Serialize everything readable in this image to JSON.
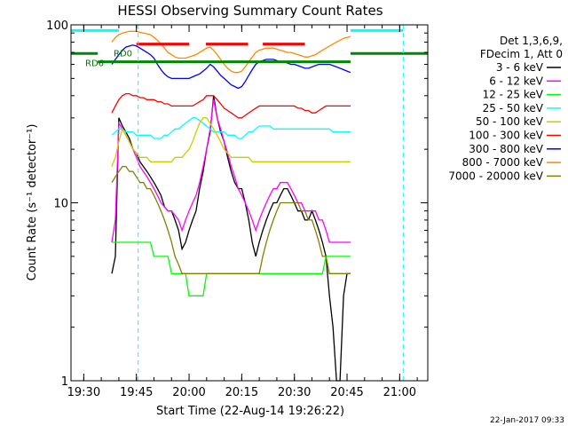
{
  "chart_data": {
    "type": "line",
    "title": "HESSI Observing Summary Count Rates",
    "xlabel": "Start Time (22-Aug-14 19:26:22)",
    "ylabel": "Count Rate (s⁻¹ detector⁻¹)",
    "yscale": "log",
    "ylim": [
      1,
      100
    ],
    "xlim": [
      "19:26:22",
      "21:08:00"
    ],
    "x_ticks": [
      "19:30",
      "19:45",
      "20:00",
      "20:15",
      "20:30",
      "20:45",
      "21:00"
    ],
    "y_ticks": [
      "1",
      "10",
      "100"
    ],
    "legend_position": "right",
    "legend_header": [
      "Det 1,3,6,9,",
      "FDecim 1, Att 0"
    ],
    "x": [
      "19:38",
      "19:39",
      "19:40",
      "19:41",
      "19:42",
      "19:43",
      "19:44",
      "19:45",
      "19:46",
      "19:47",
      "19:48",
      "19:49",
      "19:50",
      "19:51",
      "19:52",
      "19:53",
      "19:54",
      "19:55",
      "19:56",
      "19:57",
      "19:58",
      "19:59",
      "20:00",
      "20:01",
      "20:02",
      "20:03",
      "20:04",
      "20:05",
      "20:06",
      "20:07",
      "20:08",
      "20:09",
      "20:10",
      "20:11",
      "20:12",
      "20:13",
      "20:14",
      "20:15",
      "20:16",
      "20:17",
      "20:18",
      "20:19",
      "20:20",
      "20:21",
      "20:22",
      "20:23",
      "20:24",
      "20:25",
      "20:26",
      "20:27",
      "20:28",
      "20:29",
      "20:30",
      "20:31",
      "20:32",
      "20:33",
      "20:34",
      "20:35",
      "20:36",
      "20:37",
      "20:38",
      "20:39",
      "20:40",
      "20:41",
      "20:42",
      "20:43",
      "20:44",
      "20:45",
      "20:46"
    ],
    "series": [
      {
        "name": "3 - 6 keV",
        "color": "#000000",
        "values": [
          4.0,
          5.0,
          30,
          27,
          25,
          23,
          20,
          19,
          17,
          16,
          15,
          14,
          13,
          12,
          11,
          9.5,
          9,
          9,
          8,
          7,
          5.5,
          6,
          7,
          8,
          9,
          12,
          15,
          20,
          25,
          40,
          30,
          25,
          22,
          18,
          15,
          13,
          12,
          12,
          10,
          8,
          6,
          5,
          6,
          7,
          8,
          9,
          10,
          10,
          11,
          12,
          12,
          11,
          10,
          9,
          9,
          8,
          8,
          9,
          8,
          7,
          6,
          5,
          3,
          2,
          1,
          1,
          3,
          4,
          4
        ]
      },
      {
        "name": "6 - 12 keV",
        "color": "#ff00ff",
        "values": [
          6,
          8,
          28,
          26,
          24,
          22,
          20,
          18,
          16,
          15,
          14,
          13,
          12,
          11,
          10,
          9.5,
          9,
          9,
          8.5,
          8,
          7,
          8,
          9,
          10,
          11,
          13,
          16,
          20,
          26,
          38,
          30,
          26,
          22,
          19,
          16,
          14,
          12,
          11,
          10,
          9,
          8,
          7,
          8,
          9,
          10,
          11,
          12,
          12,
          13,
          13,
          13,
          12,
          11,
          10,
          10,
          9,
          9,
          9,
          9,
          8,
          8,
          7,
          6,
          6,
          6,
          6,
          6,
          6,
          6
        ]
      },
      {
        "name": "12 - 25 keV",
        "color": "#00ff00",
        "values": [
          6,
          6,
          6,
          6,
          6,
          6,
          6,
          6,
          6,
          6,
          6,
          6,
          5,
          5,
          5,
          5,
          5,
          4,
          4,
          4,
          4,
          4,
          3,
          3,
          3,
          3,
          3,
          4,
          4,
          4,
          4,
          4,
          4,
          4,
          4,
          4,
          4,
          4,
          4,
          4,
          4,
          4,
          4,
          4,
          4,
          4,
          4,
          4,
          4,
          4,
          4,
          4,
          4,
          4,
          4,
          4,
          4,
          4,
          4,
          4,
          4,
          5,
          5,
          5,
          5,
          5,
          5,
          5,
          5
        ]
      },
      {
        "name": "25 - 50 keV",
        "color": "#00ffff",
        "values": [
          24,
          25,
          26,
          26,
          25,
          25,
          25,
          24,
          24,
          24,
          24,
          24,
          23,
          23,
          23,
          24,
          24,
          25,
          26,
          26,
          27,
          28,
          29,
          30,
          30,
          29,
          28,
          27,
          26,
          25,
          25,
          25,
          25,
          24,
          24,
          24,
          23,
          23,
          24,
          25,
          25,
          26,
          27,
          27,
          27,
          27,
          26,
          26,
          26,
          26,
          26,
          26,
          26,
          26,
          26,
          26,
          26,
          26,
          26,
          26,
          26,
          26,
          26,
          25,
          25,
          25,
          25,
          25,
          25
        ]
      },
      {
        "name": "50 - 100 keV",
        "color": "#cccc00",
        "values": [
          16,
          18,
          22,
          26,
          24,
          22,
          20,
          19,
          18,
          18,
          18,
          17,
          17,
          17,
          17,
          17,
          17,
          17,
          18,
          18,
          18,
          19,
          20,
          22,
          25,
          28,
          30,
          30,
          28,
          26,
          24,
          22,
          20,
          19,
          18,
          18,
          18,
          18,
          18,
          18,
          17,
          17,
          17,
          17,
          17,
          17,
          17,
          17,
          17,
          17,
          17,
          17,
          17,
          17,
          17,
          17,
          17,
          17,
          17,
          17,
          17,
          17,
          17,
          17,
          17,
          17,
          17,
          17,
          17
        ]
      },
      {
        "name": "100 - 300 keV",
        "color": "#ff0000",
        "values": [
          32,
          35,
          38,
          40,
          41,
          41,
          40,
          40,
          39,
          39,
          38,
          38,
          38,
          37,
          37,
          36,
          36,
          35,
          35,
          35,
          35,
          35,
          35,
          35,
          36,
          37,
          38,
          40,
          40,
          40,
          38,
          36,
          34,
          33,
          32,
          31,
          30,
          30,
          31,
          32,
          33,
          34,
          35,
          35,
          35,
          35,
          35,
          35,
          35,
          35,
          35,
          35,
          35,
          34,
          34,
          33,
          33,
          32,
          32,
          33,
          34,
          35,
          35,
          35,
          35,
          35,
          35,
          35,
          35
        ]
      },
      {
        "name": "300 - 800 keV",
        "color": "#0000ff",
        "values": [
          60,
          64,
          68,
          72,
          75,
          76,
          77,
          76,
          74,
          72,
          70,
          68,
          65,
          60,
          56,
          53,
          51,
          50,
          50,
          50,
          50,
          50,
          50,
          51,
          52,
          53,
          55,
          57,
          60,
          58,
          55,
          52,
          50,
          48,
          46,
          45,
          44,
          45,
          48,
          52,
          56,
          60,
          62,
          63,
          64,
          64,
          64,
          63,
          62,
          62,
          61,
          60,
          60,
          59,
          58,
          57,
          57,
          58,
          59,
          60,
          60,
          60,
          60,
          59,
          58,
          57,
          56,
          55,
          54
        ]
      },
      {
        "name": "800 - 7000 keV",
        "color": "#ff8800",
        "values": [
          80,
          85,
          88,
          90,
          91,
          92,
          92,
          92,
          91,
          90,
          89,
          88,
          85,
          82,
          78,
          74,
          70,
          68,
          66,
          65,
          65,
          65,
          66,
          67,
          68,
          70,
          72,
          74,
          75,
          72,
          68,
          64,
          60,
          57,
          55,
          54,
          54,
          55,
          58,
          62,
          66,
          70,
          72,
          73,
          74,
          74,
          74,
          73,
          72,
          71,
          70,
          70,
          69,
          68,
          67,
          66,
          66,
          67,
          68,
          70,
          72,
          74,
          76,
          78,
          80,
          82,
          84,
          85,
          86
        ]
      },
      {
        "name": "7000 - 20000 keV",
        "color": "#808000",
        "values": [
          13,
          14,
          15,
          16,
          16,
          15,
          15,
          14,
          13,
          13,
          12,
          12,
          11,
          10,
          9,
          8,
          7,
          6,
          5,
          4.5,
          4,
          4,
          4,
          4,
          4,
          4,
          4,
          4,
          4,
          4,
          4,
          4,
          4,
          4,
          4,
          4,
          4,
          4,
          4,
          4,
          4,
          4,
          4,
          5,
          6,
          7,
          8,
          9,
          10,
          10,
          10,
          10,
          10,
          10,
          9,
          9,
          8,
          8,
          7,
          6,
          5,
          5,
          4,
          4,
          4,
          4,
          4,
          4,
          4
        ]
      }
    ],
    "annotations": [
      {
        "text": "RD6",
        "color": "#007700"
      },
      {
        "text": "RD0",
        "color": "#007700"
      }
    ],
    "overlays": [
      {
        "name": "attenuator flag",
        "color": "#ff0000"
      },
      {
        "name": "SAA / night flag",
        "color": "#00ffff"
      },
      {
        "name": "decimation flag",
        "color": "#008800"
      }
    ]
  },
  "footer": {
    "timestamp": "22-Jan-2017 09:33"
  }
}
